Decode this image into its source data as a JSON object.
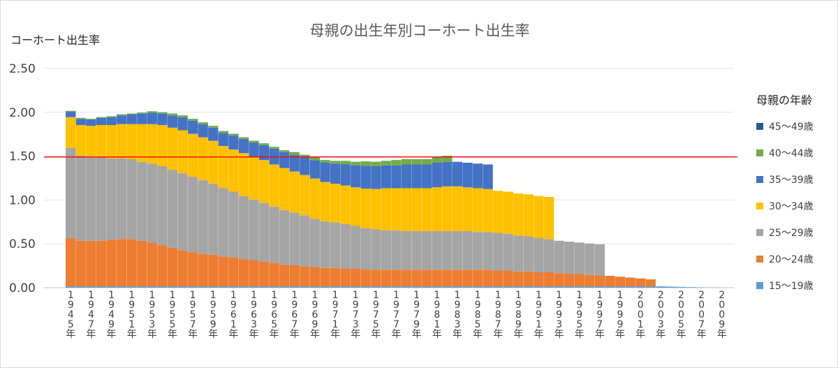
{
  "chart_data": {
    "type": "area",
    "stacked": true,
    "title": "母親の出生年別コーホート出生率",
    "ylabel": "コーホート出生率",
    "ylim": [
      0,
      2.5
    ],
    "yticks": [
      "0.00",
      "0.50",
      "1.00",
      "1.50",
      "2.00",
      "2.50"
    ],
    "grid": true,
    "reference_line": 1.49,
    "reference_line_color": "#ff0000",
    "legend_title": "母親の年齢",
    "legend_position": "right",
    "x": [
      "1945年",
      "1946年",
      "1947年",
      "1948年",
      "1949年",
      "1950年",
      "1951年",
      "1952年",
      "1953年",
      "1954年",
      "1955年",
      "1956年",
      "1957年",
      "1958年",
      "1959年",
      "1960年",
      "1961年",
      "1962年",
      "1963年",
      "1964年",
      "1965年",
      "1966年",
      "1967年",
      "1968年",
      "1969年",
      "1970年",
      "1971年",
      "1972年",
      "1973年",
      "1974年",
      "1975年",
      "1976年",
      "1977年",
      "1978年",
      "1979年",
      "1980年",
      "1981年",
      "1982年",
      "1983年",
      "1984年",
      "1985年",
      "1986年",
      "1987年",
      "1988年",
      "1989年",
      "1990年",
      "1991年",
      "1992年",
      "1993年",
      "1994年",
      "1995年",
      "1996年",
      "1997年",
      "1998年",
      "1999年",
      "2000年",
      "2001年",
      "2002年",
      "2003年",
      "2004年",
      "2005年",
      "2006年",
      "2007年",
      "2008年",
      "2009年"
    ],
    "xtick_labels": [
      "1945年",
      "1947年",
      "1949年",
      "1951年",
      "1953年",
      "1955年",
      "1957年",
      "1959年",
      "1961年",
      "1963年",
      "1965年",
      "1967年",
      "1969年",
      "1971年",
      "1973年",
      "1975年",
      "1977年",
      "1979年",
      "1981年",
      "1983年",
      "1985年",
      "1987年",
      "1989年",
      "1991年",
      "1993年",
      "1995年",
      "1997年",
      "1999年",
      "2001年",
      "2003年",
      "2005年",
      "2007年",
      "2009年"
    ],
    "series": [
      {
        "name": "15～19歳",
        "color": "#5b9bd5",
        "values": [
          0.015,
          0.015,
          0.015,
          0.015,
          0.015,
          0.015,
          0.015,
          0.015,
          0.015,
          0.015,
          0.015,
          0.015,
          0.015,
          0.015,
          0.015,
          0.015,
          0.015,
          0.015,
          0.015,
          0.015,
          0.015,
          0.015,
          0.015,
          0.015,
          0.015,
          0.015,
          0.015,
          0.015,
          0.015,
          0.015,
          0.015,
          0.015,
          0.015,
          0.015,
          0.015,
          0.015,
          0.015,
          0.015,
          0.015,
          0.015,
          0.015,
          0.015,
          0.015,
          0.015,
          0.015,
          0.015,
          0.015,
          0.015,
          0.015,
          0.015,
          0.015,
          0.015,
          0.015,
          0.015,
          0.015,
          0.015,
          0.015,
          0.015,
          0.015,
          0.012,
          0.009,
          0.006,
          0.004,
          0.002,
          0.001
        ]
      },
      {
        "name": "20～24歳",
        "color": "#ed7d31",
        "values": [
          0.55,
          0.52,
          0.52,
          0.52,
          0.53,
          0.54,
          0.54,
          0.52,
          0.5,
          0.47,
          0.44,
          0.41,
          0.39,
          0.37,
          0.36,
          0.34,
          0.33,
          0.31,
          0.3,
          0.28,
          0.27,
          0.25,
          0.24,
          0.23,
          0.22,
          0.21,
          0.21,
          0.2,
          0.2,
          0.195,
          0.19,
          0.19,
          0.19,
          0.19,
          0.19,
          0.19,
          0.19,
          0.19,
          0.19,
          0.19,
          0.19,
          0.19,
          0.18,
          0.18,
          0.17,
          0.17,
          0.16,
          0.16,
          0.15,
          0.14,
          0.14,
          0.13,
          0.12,
          0.12,
          0.11,
          0.1,
          0.09,
          0.08,
          0,
          0,
          0,
          0,
          0,
          0,
          0
        ]
      },
      {
        "name": "25～29歳",
        "color": "#a5a5a5",
        "values": [
          1.03,
          0.97,
          0.96,
          0.95,
          0.93,
          0.92,
          0.91,
          0.9,
          0.9,
          0.9,
          0.89,
          0.88,
          0.86,
          0.84,
          0.81,
          0.78,
          0.75,
          0.72,
          0.69,
          0.67,
          0.64,
          0.62,
          0.6,
          0.58,
          0.55,
          0.53,
          0.52,
          0.51,
          0.49,
          0.47,
          0.46,
          0.45,
          0.45,
          0.44,
          0.44,
          0.44,
          0.44,
          0.44,
          0.44,
          0.44,
          0.43,
          0.43,
          0.43,
          0.42,
          0.41,
          0.4,
          0.39,
          0.38,
          0.37,
          0.37,
          0.36,
          0.36,
          0.36,
          0,
          0,
          0,
          0,
          0,
          0,
          0,
          0,
          0,
          0,
          0,
          0
        ]
      },
      {
        "name": "30～34歳",
        "color": "#ffc000",
        "values": [
          0.35,
          0.35,
          0.35,
          0.37,
          0.38,
          0.39,
          0.4,
          0.43,
          0.45,
          0.47,
          0.48,
          0.49,
          0.49,
          0.49,
          0.49,
          0.48,
          0.48,
          0.49,
          0.49,
          0.49,
          0.48,
          0.48,
          0.47,
          0.46,
          0.46,
          0.45,
          0.44,
          0.44,
          0.44,
          0.45,
          0.46,
          0.48,
          0.48,
          0.49,
          0.49,
          0.49,
          0.5,
          0.51,
          0.51,
          0.5,
          0.5,
          0.49,
          0.48,
          0.48,
          0.48,
          0.48,
          0.48,
          0.48,
          0,
          0,
          0,
          0,
          0,
          0,
          0,
          0,
          0,
          0,
          0,
          0,
          0,
          0,
          0,
          0,
          0
        ]
      },
      {
        "name": "35～39歳",
        "color": "#4472c4",
        "values": [
          0.06,
          0.07,
          0.07,
          0.08,
          0.09,
          0.1,
          0.11,
          0.12,
          0.13,
          0.13,
          0.14,
          0.15,
          0.15,
          0.15,
          0.15,
          0.15,
          0.16,
          0.16,
          0.16,
          0.17,
          0.18,
          0.18,
          0.19,
          0.2,
          0.21,
          0.22,
          0.23,
          0.24,
          0.25,
          0.26,
          0.26,
          0.26,
          0.26,
          0.27,
          0.27,
          0.27,
          0.28,
          0.28,
          0.28,
          0.28,
          0.28,
          0.28,
          0,
          0,
          0,
          0,
          0,
          0,
          0,
          0,
          0,
          0,
          0,
          0,
          0,
          0,
          0,
          0,
          0,
          0,
          0,
          0,
          0,
          0,
          0
        ]
      },
      {
        "name": "40～44歳",
        "color": "#70ad47",
        "values": [
          0.01,
          0.01,
          0.01,
          0.01,
          0.01,
          0.01,
          0.01,
          0.01,
          0.015,
          0.015,
          0.02,
          0.02,
          0.02,
          0.02,
          0.02,
          0.02,
          0.02,
          0.02,
          0.02,
          0.02,
          0.02,
          0.02,
          0.03,
          0.03,
          0.03,
          0.03,
          0.03,
          0.04,
          0.04,
          0.05,
          0.05,
          0.05,
          0.06,
          0.06,
          0.06,
          0.06,
          0.06,
          0.07,
          0,
          0,
          0,
          0,
          0,
          0,
          0,
          0,
          0,
          0,
          0,
          0,
          0,
          0,
          0,
          0,
          0,
          0,
          0,
          0,
          0,
          0,
          0,
          0,
          0,
          0,
          0
        ]
      },
      {
        "name": "45～49歳",
        "color": "#255e91",
        "values": [
          0.001,
          0.001,
          0.001,
          0.001,
          0.001,
          0.001,
          0.001,
          0.001,
          0.001,
          0.001,
          0.001,
          0.001,
          0.001,
          0.001,
          0.001,
          0.001,
          0.001,
          0.001,
          0.001,
          0.001,
          0.001,
          0.001,
          0.001,
          0.001,
          0.001,
          0.001,
          0.001,
          0.001,
          0.001,
          0.001,
          0.001,
          0.001,
          0.001,
          0.001,
          0.001,
          0.001,
          0.001,
          0,
          0,
          0,
          0,
          0,
          0,
          0,
          0,
          0,
          0,
          0,
          0,
          0,
          0,
          0,
          0,
          0,
          0,
          0,
          0,
          0,
          0,
          0,
          0,
          0,
          0,
          0,
          0
        ]
      }
    ]
  }
}
